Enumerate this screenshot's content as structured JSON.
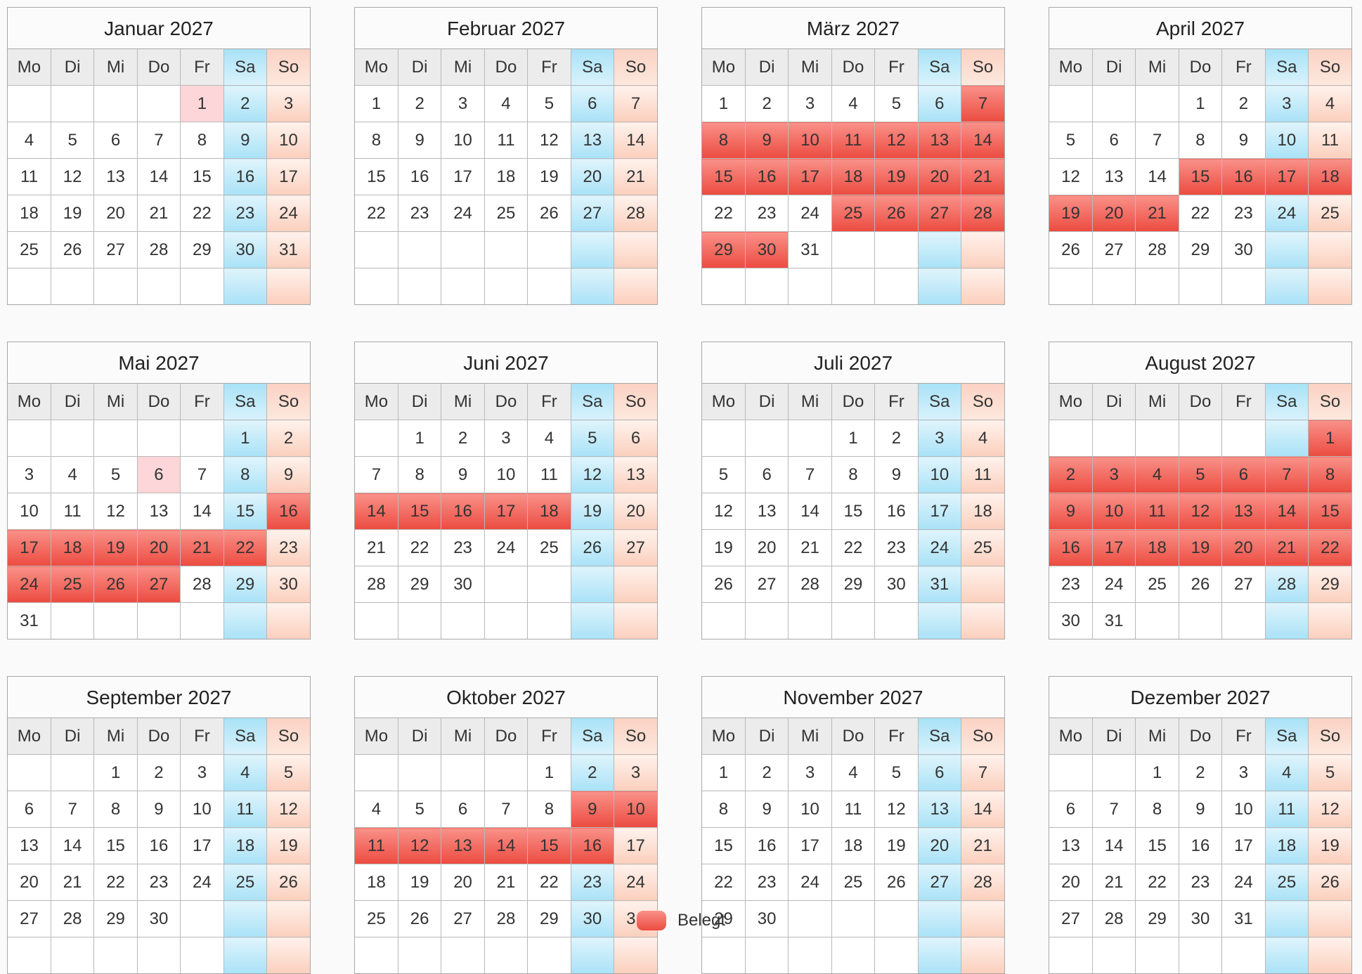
{
  "weekday_labels": [
    "Mo",
    "Di",
    "Mi",
    "Do",
    "Fr",
    "Sa",
    "So"
  ],
  "months": [
    {
      "title": "Januar 2027",
      "start_weekday": 4,
      "days_in_month": 31,
      "busy": [],
      "half_busy": [
        1
      ],
      "red_text": [
        1
      ]
    },
    {
      "title": "Februar 2027",
      "start_weekday": 0,
      "days_in_month": 28,
      "busy": [],
      "half_busy": [],
      "red_text": []
    },
    {
      "title": "März 2027",
      "start_weekday": 0,
      "days_in_month": 31,
      "busy": [
        7,
        8,
        9,
        10,
        11,
        12,
        13,
        14,
        15,
        16,
        17,
        18,
        19,
        20,
        21,
        25,
        26,
        27,
        28,
        29,
        30
      ],
      "half_busy": [],
      "red_text": [
        26,
        29
      ]
    },
    {
      "title": "April 2027",
      "start_weekday": 3,
      "days_in_month": 30,
      "busy": [
        15,
        16,
        17,
        18,
        19,
        20,
        21
      ],
      "half_busy": [],
      "red_text": []
    },
    {
      "title": "Mai 2027",
      "start_weekday": 5,
      "days_in_month": 31,
      "busy": [
        16,
        17,
        18,
        19,
        20,
        21,
        22,
        24,
        25,
        26,
        27
      ],
      "half_busy": [
        6
      ],
      "red_text": [
        1,
        6,
        17
      ]
    },
    {
      "title": "Juni 2027",
      "start_weekday": 1,
      "days_in_month": 30,
      "busy": [
        14,
        15,
        16,
        17,
        18
      ],
      "half_busy": [],
      "red_text": []
    },
    {
      "title": "Juli 2027",
      "start_weekday": 3,
      "days_in_month": 31,
      "busy": [],
      "half_busy": [],
      "red_text": []
    },
    {
      "title": "August 2027",
      "start_weekday": 6,
      "days_in_month": 31,
      "busy": [
        1,
        2,
        3,
        4,
        5,
        6,
        7,
        8,
        9,
        10,
        11,
        12,
        13,
        14,
        15,
        16,
        17,
        18,
        19,
        20,
        21,
        22
      ],
      "half_busy": [],
      "red_text": []
    },
    {
      "title": "September 2027",
      "start_weekday": 2,
      "days_in_month": 30,
      "busy": [],
      "half_busy": [],
      "red_text": []
    },
    {
      "title": "Oktober 2027",
      "start_weekday": 4,
      "days_in_month": 31,
      "busy": [
        9,
        10,
        11,
        12,
        13,
        14,
        15,
        16
      ],
      "half_busy": [],
      "red_text": [
        3
      ]
    },
    {
      "title": "November 2027",
      "start_weekday": 0,
      "days_in_month": 30,
      "busy": [],
      "half_busy": [],
      "red_text": []
    },
    {
      "title": "Dezember 2027",
      "start_weekday": 2,
      "days_in_month": 31,
      "busy": [],
      "half_busy": [],
      "red_text": [
        25,
        26
      ]
    }
  ],
  "legend": {
    "label": "Belegt"
  },
  "colors": {
    "busy": "#ec4b40",
    "saturday": "#a9e2f7",
    "sunday": "#fbcfbd",
    "holiday_text": "#d4212a"
  }
}
